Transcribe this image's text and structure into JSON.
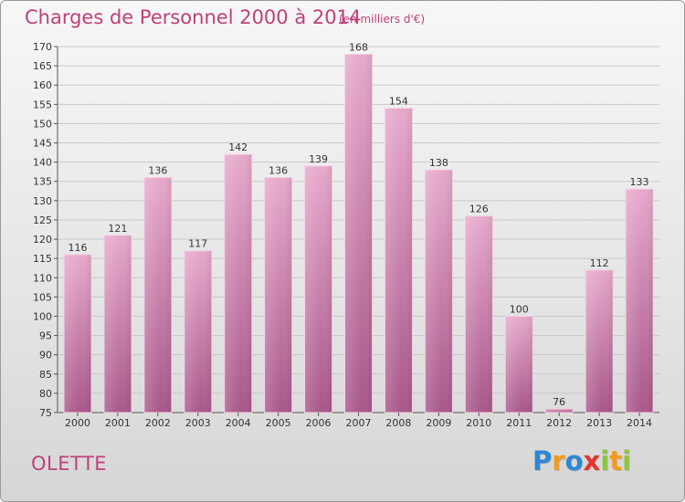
{
  "header": {
    "title": "Charges de Personnel 2000 à 2014",
    "subtitle": "(en milliers d'€)"
  },
  "footer": {
    "place": "OLETTE",
    "brand_letters": [
      {
        "ch": "P",
        "color": "#2e86d6"
      },
      {
        "ch": "r",
        "color": "#f39a1e"
      },
      {
        "ch": "o",
        "color": "#2e86d6"
      },
      {
        "ch": "x",
        "color": "#e3342f"
      },
      {
        "ch": "i",
        "color": "#8cc63f"
      },
      {
        "ch": "t",
        "color": "#f39a1e"
      },
      {
        "ch": "i",
        "color": "#8cc63f"
      }
    ]
  },
  "colors": {
    "accent": "#c0407a",
    "bar_top": "#e7a9cb",
    "bar_bottom": "#a8578a"
  },
  "chart_data": {
    "type": "bar",
    "title": "Charges de Personnel 2000 à 2014",
    "subtitle": "(en milliers d'€)",
    "categories": [
      "2000",
      "2001",
      "2002",
      "2003",
      "2004",
      "2005",
      "2006",
      "2007",
      "2008",
      "2009",
      "2010",
      "2011",
      "2012",
      "2013",
      "2014"
    ],
    "values": [
      116,
      121,
      136,
      117,
      142,
      136,
      139,
      168,
      154,
      138,
      126,
      100,
      76,
      112,
      133
    ],
    "ylim": [
      75,
      170
    ],
    "yticks": [
      75,
      80,
      85,
      90,
      95,
      100,
      105,
      110,
      115,
      120,
      125,
      130,
      135,
      140,
      145,
      150,
      155,
      160,
      165,
      170
    ],
    "grid": true,
    "legend": "none"
  }
}
